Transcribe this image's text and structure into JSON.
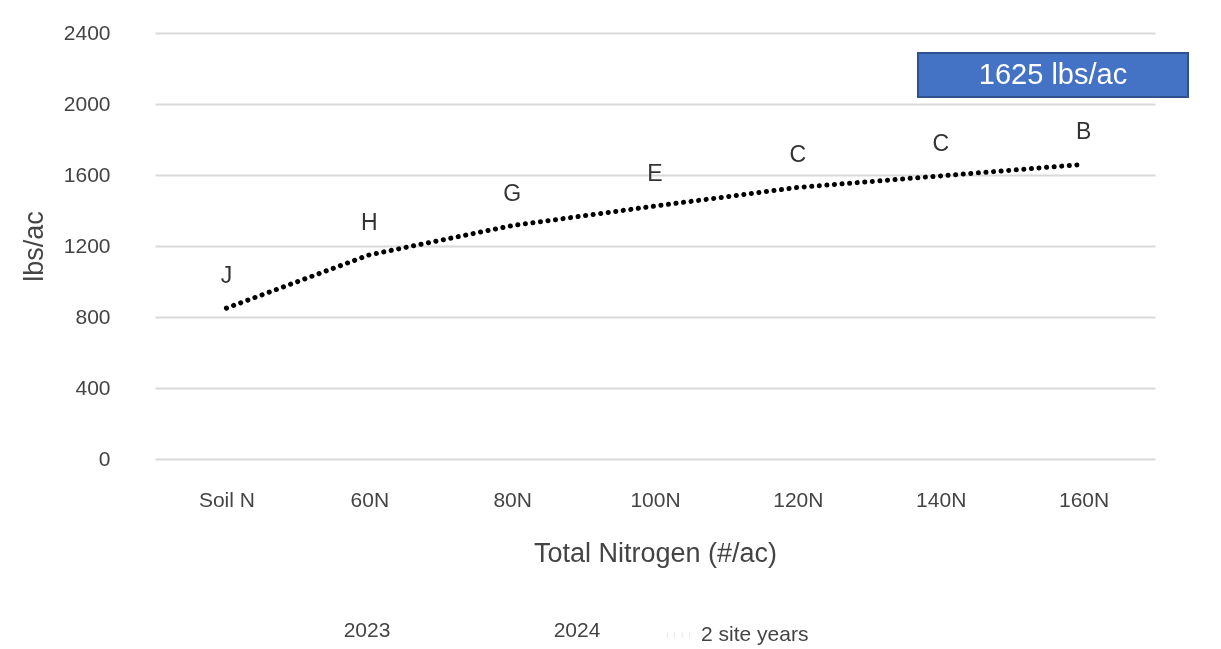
{
  "chart_data": {
    "type": "line",
    "xlabel": "Total Nitrogen (#/ac)",
    "ylabel": "lbs/ac",
    "categories": [
      "Soil N",
      "60N",
      "80N",
      "100N",
      "120N",
      "140N",
      "160N"
    ],
    "series": [
      {
        "name": "2 site years",
        "color": "#000000",
        "values": [
          850,
          1150,
          1315,
          1425,
          1530,
          1595,
          1660
        ],
        "line_style": "dotted"
      }
    ],
    "ylim": [
      0,
      2400
    ],
    "yticks": [
      0,
      400,
      800,
      1200,
      1600,
      2000,
      2400
    ],
    "grid": "y",
    "legend": "bottom",
    "marker": "none",
    "annotations": [
      {
        "text": "J",
        "x": "Soil N",
        "y": 850
      },
      {
        "text": "H",
        "x": "60N",
        "y": 1150
      },
      {
        "text": "G",
        "x": "80N",
        "y": 1315
      },
      {
        "text": "E",
        "x": "100N",
        "y": 1425
      },
      {
        "text": "C",
        "x": "120N",
        "y": 1530
      },
      {
        "text": "C",
        "x": "140N",
        "y": 1595
      },
      {
        "text": "B",
        "x": "160N",
        "y": 1660
      },
      "1625 lbs/ac",
      "2023",
      "2024"
    ]
  }
}
